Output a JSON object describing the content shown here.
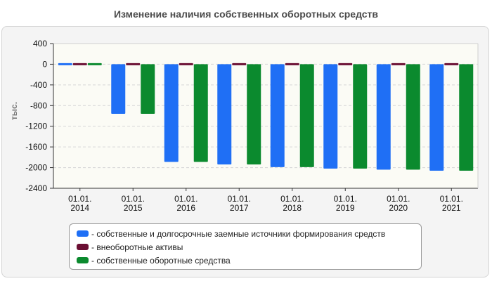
{
  "title": "Изменение наличия собственных оборотных средств",
  "chart_data": {
    "type": "bar",
    "title": "Изменение наличия собственных оборотных средств",
    "xlabel": "",
    "ylabel": "тыс.",
    "ylim": [
      -2400,
      400
    ],
    "yticks": [
      "400",
      "0",
      "-400",
      "-800",
      "-1200",
      "-1600",
      "-2000",
      "-2400"
    ],
    "ytick_values": [
      400,
      0,
      -400,
      -800,
      -1200,
      -1600,
      -2000,
      -2400
    ],
    "grid": true,
    "legend_position": "bottom",
    "categories": [
      [
        "01.01.",
        "2014"
      ],
      [
        "01.01.",
        "2015"
      ],
      [
        "01.01.",
        "2016"
      ],
      [
        "01.01.",
        "2017"
      ],
      [
        "01.01.",
        "2018"
      ],
      [
        "01.01.",
        "2019"
      ],
      [
        "01.01.",
        "2020"
      ],
      [
        "01.01.",
        "2021"
      ]
    ],
    "series": [
      {
        "name": "- собственные и долгосрочные заемные источники формирования средств",
        "color": "#1f6ff5",
        "values": [
          0,
          -960,
          -1890,
          -1940,
          -1990,
          -2020,
          -2040,
          -2060
        ]
      },
      {
        "name": "- внеоборотные активы",
        "color": "#6b0f33",
        "values": [
          0,
          0,
          0,
          0,
          0,
          0,
          0,
          0
        ]
      },
      {
        "name": "- собственные оборотные средства",
        "color": "#0b8a2e",
        "values": [
          0,
          -960,
          -1890,
          -1940,
          -1990,
          -2020,
          -2040,
          -2060
        ]
      }
    ]
  }
}
